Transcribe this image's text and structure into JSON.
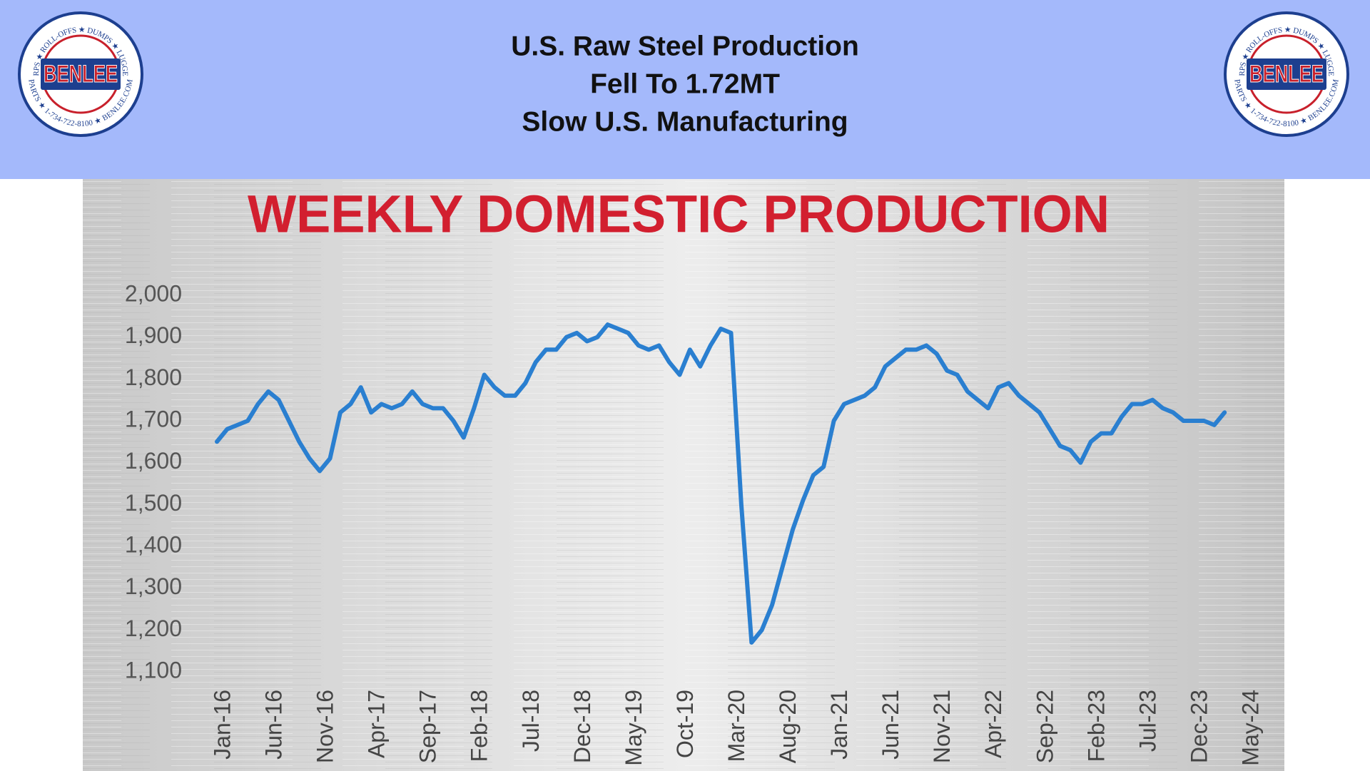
{
  "header": {
    "title_lines": [
      "U.S. Raw Steel Production",
      "Fell To 1.72MT",
      "Slow U.S. Manufacturing"
    ]
  },
  "logo": {
    "name": "BENLEE",
    "ring_top": "TARPS ★ ROLL-OFFS ★ DUMPS ★ LUGGERS",
    "ring_bottom": "PARTS ★ 1-734-722-8100 ★ BENLEE.COM"
  },
  "chart_data": {
    "type": "line",
    "title": "WEEKLY DOMESTIC PRODUCTION",
    "color": "#2a7fd0",
    "categories": [
      "Jan-16",
      null,
      null,
      null,
      null,
      "Jun-16",
      null,
      null,
      null,
      null,
      "Nov-16",
      null,
      null,
      null,
      null,
      "Apr-17",
      null,
      null,
      null,
      null,
      "Sep-17",
      null,
      null,
      null,
      null,
      "Feb-18",
      null,
      null,
      null,
      null,
      "Jul-18",
      null,
      null,
      null,
      null,
      "Dec-18",
      null,
      null,
      null,
      null,
      "May-19",
      null,
      null,
      null,
      null,
      "Oct-19",
      null,
      null,
      null,
      null,
      "Mar-20",
      null,
      null,
      null,
      null,
      "Aug-20",
      null,
      null,
      null,
      null,
      "Jan-21",
      null,
      null,
      null,
      null,
      "Jun-21",
      null,
      null,
      null,
      null,
      "Nov-21",
      null,
      null,
      null,
      null,
      "Apr-22",
      null,
      null,
      null,
      null,
      "Sep-22",
      null,
      null,
      null,
      null,
      "Feb-23",
      null,
      null,
      null,
      null,
      "Jul-23",
      null,
      null,
      null,
      null,
      "Dec-23",
      null,
      null,
      null,
      null,
      "May-24"
    ],
    "values": [
      1650,
      1680,
      1690,
      1700,
      1740,
      1770,
      1750,
      1700,
      1650,
      1610,
      1580,
      1610,
      1720,
      1740,
      1780,
      1720,
      1740,
      1730,
      1740,
      1770,
      1740,
      1730,
      1730,
      1700,
      1660,
      1730,
      1810,
      1780,
      1760,
      1760,
      1790,
      1840,
      1870,
      1870,
      1900,
      1910,
      1890,
      1900,
      1930,
      1920,
      1910,
      1880,
      1870,
      1880,
      1840,
      1810,
      1870,
      1830,
      1880,
      1920,
      1910,
      1500,
      1170,
      1200,
      1260,
      1350,
      1440,
      1510,
      1570,
      1590,
      1700,
      1740,
      1750,
      1760,
      1780,
      1830,
      1850,
      1870,
      1870,
      1880,
      1860,
      1820,
      1810,
      1770,
      1750,
      1730,
      1780,
      1790,
      1760,
      1740,
      1720,
      1680,
      1640,
      1630,
      1600,
      1650,
      1670,
      1670,
      1710,
      1740,
      1740,
      1750,
      1730,
      1720,
      1700,
      1700,
      1700,
      1690,
      1720,
      null,
      null
    ],
    "ylim": [
      1100,
      2000
    ],
    "yticks": [
      {
        "value": 1100,
        "label": "1,100"
      },
      {
        "value": 1200,
        "label": "1,200"
      },
      {
        "value": 1300,
        "label": "1,300"
      },
      {
        "value": 1400,
        "label": "1,400"
      },
      {
        "value": 1500,
        "label": "1,500"
      },
      {
        "value": 1600,
        "label": "1,600"
      },
      {
        "value": 1700,
        "label": "1,700"
      },
      {
        "value": 1800,
        "label": "1,800"
      },
      {
        "value": 1900,
        "label": "1,900"
      },
      {
        "value": 2000,
        "label": "2,000"
      }
    ],
    "grid": false
  }
}
